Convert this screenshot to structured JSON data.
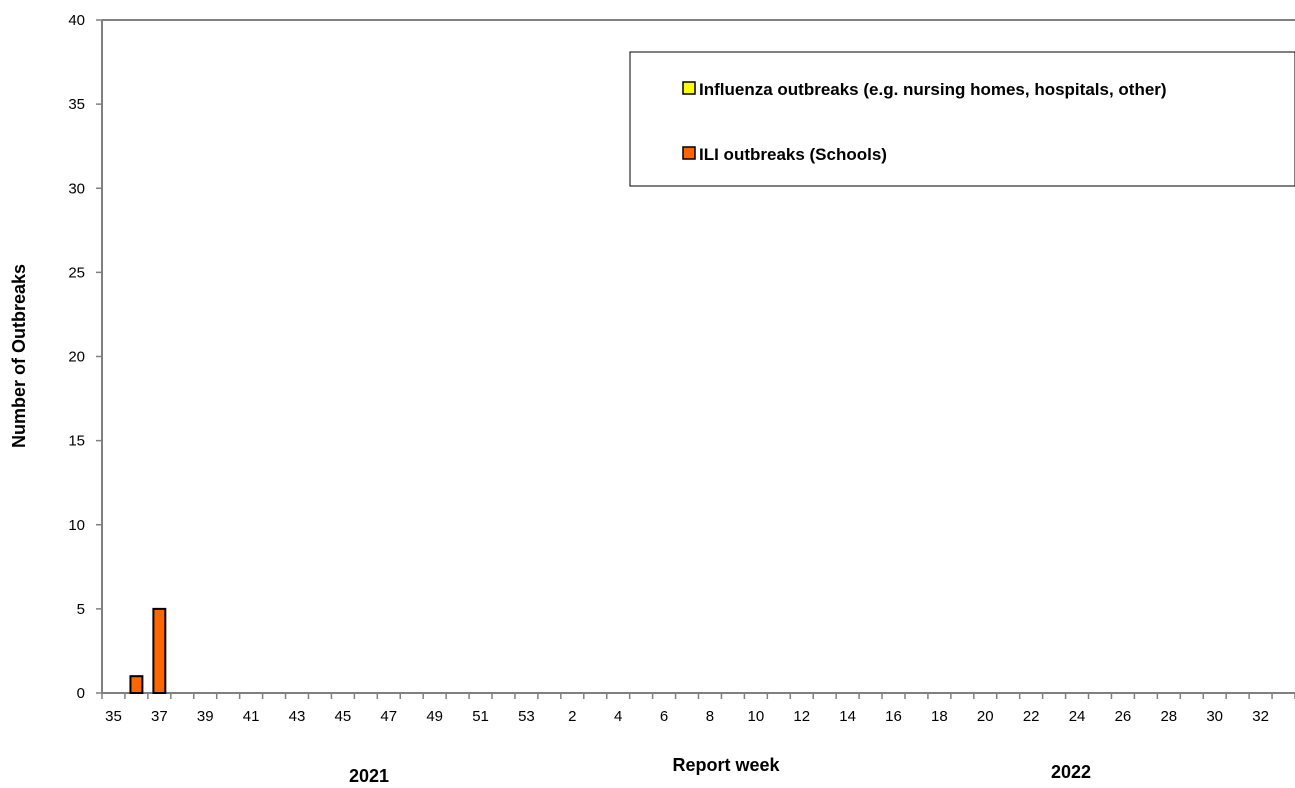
{
  "chart_data": {
    "type": "bar",
    "ylabel": "Number of Outbreaks",
    "xlabel": "Report week",
    "ylim": [
      0,
      40
    ],
    "yticks": [
      0,
      5,
      10,
      15,
      20,
      25,
      30,
      35,
      40
    ],
    "grid": false,
    "legend_position": "top-right",
    "year_labels": [
      {
        "label": "2021",
        "near_week": "41"
      },
      {
        "label": "2022",
        "near_week": "24"
      }
    ],
    "categories": [
      "35",
      "36",
      "37",
      "38",
      "39",
      "40",
      "41",
      "42",
      "43",
      "44",
      "45",
      "46",
      "47",
      "48",
      "49",
      "50",
      "51",
      "52",
      "53",
      "1",
      "2",
      "3",
      "4",
      "5",
      "6",
      "7",
      "8",
      "9",
      "10",
      "11",
      "12",
      "13",
      "14",
      "15",
      "16",
      "17",
      "18",
      "19",
      "20",
      "21",
      "22",
      "23",
      "24",
      "25",
      "26",
      "27",
      "28",
      "29",
      "30",
      "31",
      "32",
      "33"
    ],
    "tick_labels": [
      "35",
      "37",
      "39",
      "41",
      "43",
      "45",
      "47",
      "49",
      "51",
      "53",
      "2",
      "4",
      "6",
      "8",
      "10",
      "12",
      "14",
      "16",
      "18",
      "20",
      "22",
      "24",
      "26",
      "28",
      "30",
      "32"
    ],
    "series": [
      {
        "name": "Influenza outbreaks (e.g. nursing homes, hospitals, other)",
        "color": "#ffff00",
        "values": [
          0,
          0,
          0,
          0,
          0,
          0,
          0,
          0,
          0,
          0,
          0,
          0,
          0,
          0,
          0,
          0,
          0,
          0,
          0,
          0,
          0,
          0,
          0,
          0,
          0,
          0,
          0,
          0,
          0,
          0,
          0,
          0,
          0,
          0,
          0,
          0,
          0,
          0,
          0,
          0,
          0,
          0,
          0,
          0,
          0,
          0,
          0,
          0,
          0,
          0,
          0,
          0
        ]
      },
      {
        "name": "ILI outbreaks (Schools)",
        "color": "#ff6600",
        "values": [
          0,
          1,
          5,
          0,
          0,
          0,
          0,
          0,
          0,
          0,
          0,
          0,
          0,
          0,
          0,
          0,
          0,
          0,
          0,
          0,
          0,
          0,
          0,
          0,
          0,
          0,
          0,
          0,
          0,
          0,
          0,
          0,
          0,
          0,
          0,
          0,
          0,
          0,
          0,
          0,
          0,
          0,
          0,
          0,
          0,
          0,
          0,
          0,
          0,
          0,
          0,
          0
        ]
      }
    ]
  }
}
